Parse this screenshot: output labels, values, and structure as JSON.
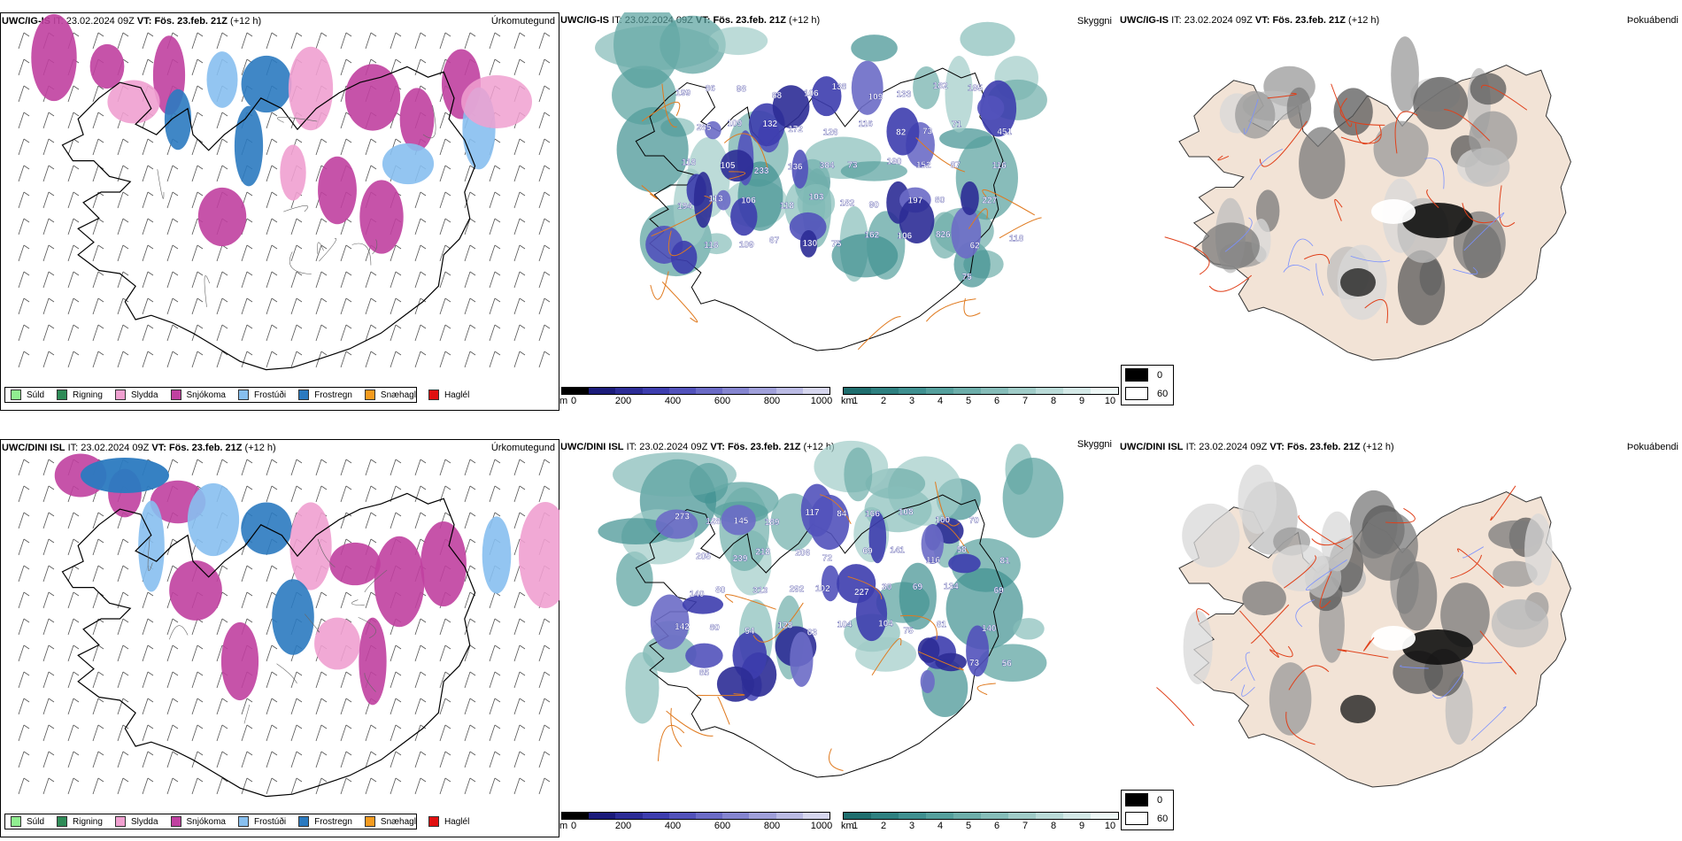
{
  "rows": [
    {
      "model": "UWC/IG-IS",
      "it_label": "IT:",
      "it_value": "23.02.2024 09Z",
      "vt_label": "VT:",
      "vt_value": "Fös. 23.feb. 21Z",
      "lead": "(+12 h)",
      "panels": {
        "precip": {
          "label": "Úrkomutegund"
        },
        "cloud": {
          "label": "Skyggni"
        },
        "fog": {
          "label": "Þokuábendi"
        }
      },
      "cloud_numbers": [
        "199",
        "86",
        "98",
        "88",
        "106",
        "138",
        "109",
        "133",
        "182",
        "195",
        "451",
        "285",
        "109",
        "132",
        "172",
        "126",
        "116",
        "82",
        "73",
        "71",
        "116",
        "118",
        "105",
        "233",
        "136",
        "384",
        "73",
        "190",
        "152",
        "87",
        "227",
        "194",
        "113",
        "106",
        "118",
        "103",
        "182",
        "90",
        "197",
        "80",
        "62",
        "118",
        "118",
        "109",
        "67",
        "130",
        "75",
        "162",
        "106",
        "826",
        "75"
      ]
    },
    {
      "model": "UWC/DINI ISL",
      "it_label": "IT:",
      "it_value": "23.02.2024 09Z",
      "vt_label": "VT:",
      "vt_value": "Fös. 23.feb. 21Z",
      "lead": "(+12 h)",
      "panels": {
        "precip": {
          "label": "Úrkomutegund"
        },
        "cloud": {
          "label": "Skyggni"
        },
        "fog": {
          "label": "Þokuábendi"
        }
      },
      "cloud_numbers": [
        "273",
        "128",
        "145",
        "189",
        "117",
        "84",
        "166",
        "108",
        "100",
        "70",
        "81",
        "205",
        "239",
        "218",
        "206",
        "72",
        "69",
        "141",
        "116",
        "58",
        "69",
        "140",
        "80",
        "313",
        "292",
        "102",
        "227",
        "30",
        "69",
        "134",
        "140",
        "142",
        "80",
        "54",
        "128",
        "63",
        "104",
        "104",
        "75",
        "81",
        "73",
        "56",
        "85"
      ]
    }
  ],
  "precip_legend": [
    {
      "label": "Súld",
      "color": "#90ee90"
    },
    {
      "label": "Rigning",
      "color": "#2e8b57"
    },
    {
      "label": "Slydda",
      "color": "#f0a0d0"
    },
    {
      "label": "Snjókoma",
      "color": "#c040a0"
    },
    {
      "label": "Frostúði",
      "color": "#87bfef"
    },
    {
      "label": "Frostregn",
      "color": "#2b7ac0"
    },
    {
      "label": "Snæhagl",
      "color": "#f59b1f"
    },
    {
      "label": "Haglél",
      "color": "#e01010"
    }
  ],
  "cloud_base_scale": {
    "unit": "m",
    "ticks": [
      "0",
      "200",
      "400",
      "600",
      "800",
      "1000"
    ],
    "colors": [
      "#000000",
      "#1b1b7a",
      "#2c2c96",
      "#3d3dae",
      "#5252bb",
      "#6b6bc6",
      "#8585d0",
      "#a0a0da",
      "#bbbbe4",
      "#d6d6ee"
    ]
  },
  "visibility_scale": {
    "unit": "km",
    "ticks": [
      "1",
      "2",
      "3",
      "4",
      "5",
      "6",
      "7",
      "8",
      "9",
      "10"
    ],
    "colors": [
      "#1f6e6e",
      "#2e8080",
      "#3f9090",
      "#55a09d",
      "#6daeaa",
      "#86bdb9",
      "#a0ccc8",
      "#badbd8",
      "#d4e9e7",
      "#eef7f6"
    ]
  },
  "fog_legend": [
    {
      "label": "0",
      "color": "#000000"
    },
    {
      "label": "60",
      "color": "#ffffff"
    }
  ]
}
